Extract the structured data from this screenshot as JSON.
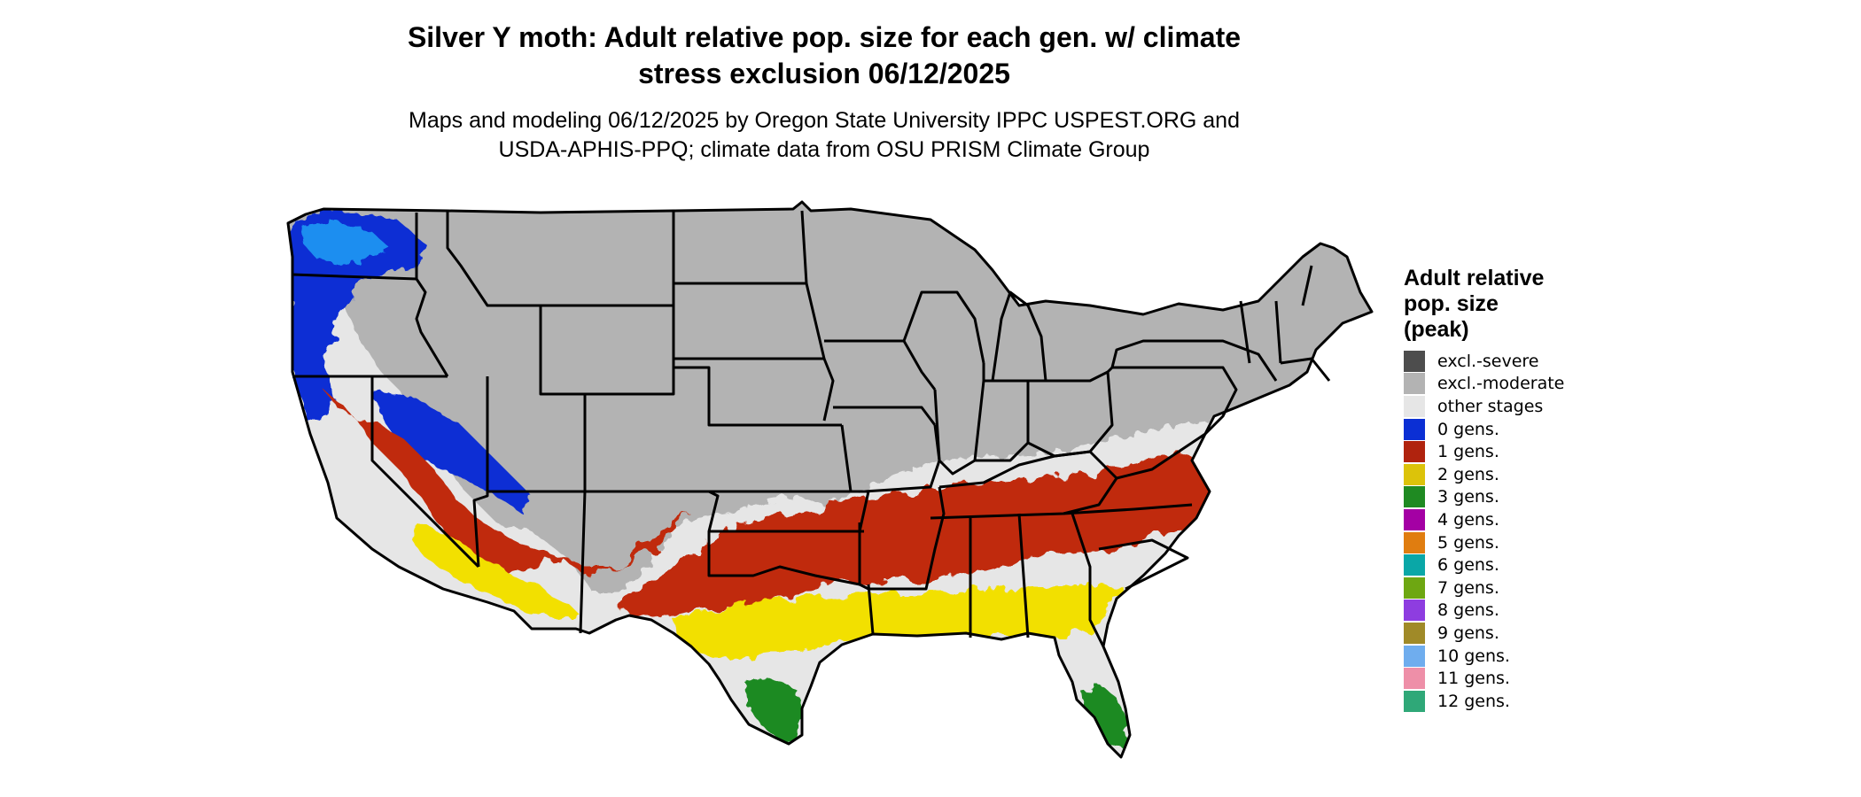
{
  "title": {
    "line1": "Silver Y moth: Adult relative pop. size for each gen. w/ climate",
    "line2": "stress exclusion 06/12/2025"
  },
  "subtitle": {
    "line1": "Maps and modeling 06/12/2025 by Oregon State University IPPC USPEST.ORG and",
    "line2": "USDA-APHIS-PPQ; climate data from OSU PRISM Climate Group"
  },
  "legend": {
    "title_line1": "Adult relative",
    "title_line2": "pop. size",
    "title_line3": "(peak)",
    "items": [
      {
        "label": "excl.-severe",
        "color": "#4d4d4d"
      },
      {
        "label": "excl.-moderate",
        "color": "#b3b3b3"
      },
      {
        "label": "other stages",
        "color": "#e6e6e6"
      },
      {
        "label": "0 gens.",
        "color": "#0b2fd4"
      },
      {
        "label": "1 gens.",
        "color": "#b0230e"
      },
      {
        "label": "2 gens.",
        "color": "#dcc30a"
      },
      {
        "label": "3 gens.",
        "color": "#1f8a22"
      },
      {
        "label": "4 gens.",
        "color": "#a400a4"
      },
      {
        "label": "5 gens.",
        "color": "#e07d10"
      },
      {
        "label": "6 gens.",
        "color": "#0aa7a7"
      },
      {
        "label": "7 gens.",
        "color": "#6ea712"
      },
      {
        "label": "8 gens.",
        "color": "#8e3de0"
      },
      {
        "label": "9 gens.",
        "color": "#a08a28"
      },
      {
        "label": "10 gens.",
        "color": "#6fadee"
      },
      {
        "label": "11 gens.",
        "color": "#ee8fa8"
      },
      {
        "label": "12 gens.",
        "color": "#2fa878"
      }
    ]
  },
  "map_colors": {
    "excluded_moderate": "#b3b3b3",
    "other_stages": "#e6e6e6",
    "zero_gens": "#0b2fd4",
    "zero_gens_light": "#1e8ef0",
    "one_gen": "#c02a0c",
    "two_gens": "#f2e000",
    "three_gens": "#1f8a22",
    "four_gens": "#a400a4",
    "border": "#000000"
  }
}
